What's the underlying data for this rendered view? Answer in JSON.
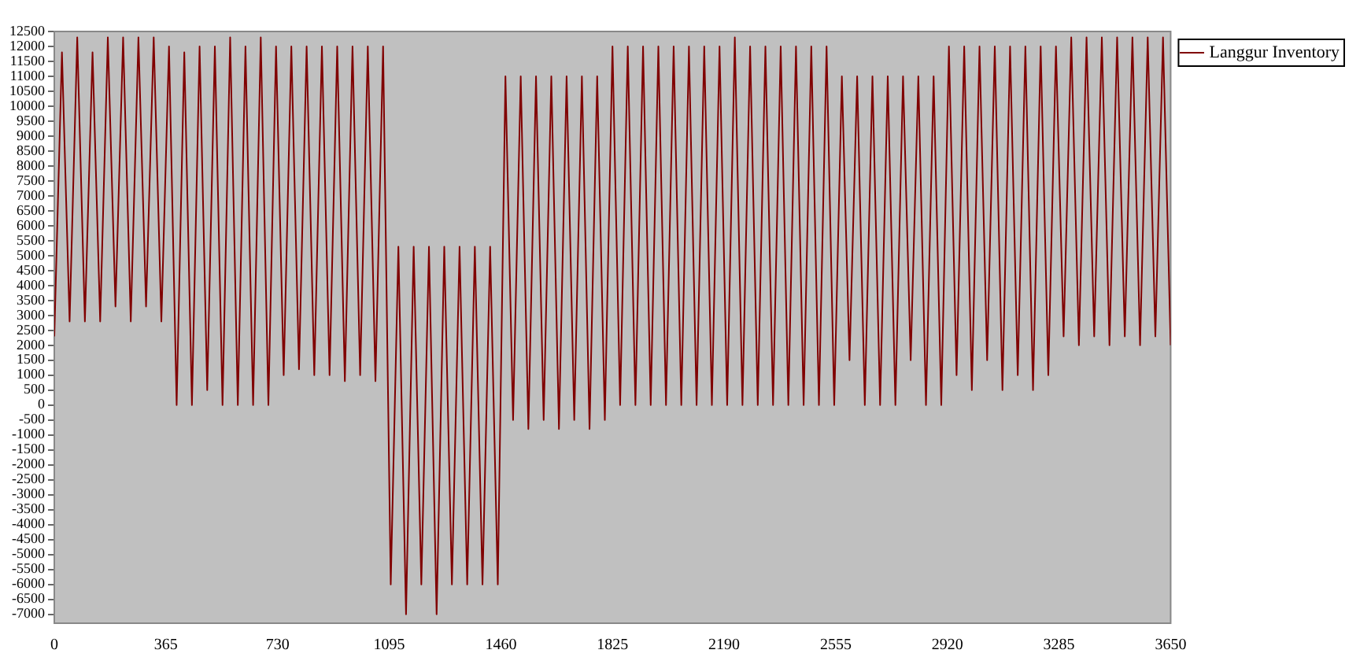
{
  "chart_data": {
    "type": "line",
    "legend": "top right",
    "marker": "none",
    "grid": false,
    "x": [
      0,
      25,
      50,
      75,
      100,
      125,
      150,
      175,
      200,
      225,
      250,
      275,
      300,
      325,
      350,
      375,
      400,
      425,
      450,
      475,
      500,
      525,
      550,
      575,
      600,
      625,
      650,
      675,
      700,
      725,
      750,
      775,
      800,
      825,
      850,
      875,
      900,
      925,
      950,
      975,
      1000,
      1025,
      1050,
      1075,
      1100,
      1125,
      1150,
      1175,
      1200,
      1225,
      1250,
      1275,
      1300,
      1325,
      1350,
      1375,
      1400,
      1425,
      1450,
      1475,
      1500,
      1525,
      1550,
      1575,
      1600,
      1625,
      1650,
      1675,
      1700,
      1725,
      1750,
      1775,
      1800,
      1825,
      1850,
      1875,
      1900,
      1925,
      1950,
      1975,
      2000,
      2025,
      2050,
      2075,
      2100,
      2125,
      2150,
      2175,
      2200,
      2225,
      2250,
      2275,
      2300,
      2325,
      2350,
      2375,
      2400,
      2425,
      2450,
      2475,
      2500,
      2525,
      2550,
      2575,
      2600,
      2625,
      2650,
      2675,
      2700,
      2725,
      2750,
      2775,
      2800,
      2825,
      2850,
      2875,
      2900,
      2925,
      2950,
      2975,
      3000,
      3025,
      3050,
      3075,
      3100,
      3125,
      3150,
      3175,
      3200,
      3225,
      3250,
      3275,
      3300,
      3325,
      3350,
      3375,
      3400,
      3425,
      3450,
      3475,
      3500,
      3525,
      3550,
      3575,
      3600,
      3625,
      3650
    ],
    "series": [
      {
        "name": "Langgur Inventory",
        "color": "#800000",
        "values": [
          2300,
          11800,
          2800,
          12300,
          2800,
          11800,
          2800,
          12300,
          3300,
          12300,
          2800,
          12300,
          3300,
          12300,
          2800,
          12000,
          0,
          11800,
          0,
          12000,
          500,
          12000,
          0,
          12300,
          0,
          12000,
          0,
          12300,
          0,
          12000,
          1000,
          12000,
          1200,
          12000,
          1000,
          12000,
          1000,
          12000,
          800,
          12000,
          1000,
          12000,
          800,
          12000,
          -6000,
          5300,
          -7000,
          5300,
          -6000,
          5300,
          -7000,
          5300,
          -6000,
          5300,
          -6000,
          5300,
          -6000,
          5300,
          -6000,
          11000,
          -500,
          11000,
          -800,
          11000,
          -500,
          11000,
          -800,
          11000,
          -500,
          11000,
          -800,
          11000,
          -500,
          12000,
          0,
          12000,
          0,
          12000,
          0,
          12000,
          0,
          12000,
          0,
          12000,
          0,
          12000,
          0,
          12000,
          0,
          12300,
          0,
          12000,
          0,
          12000,
          0,
          12000,
          0,
          12000,
          0,
          12000,
          0,
          12000,
          0,
          11000,
          1500,
          11000,
          0,
          11000,
          0,
          11000,
          0,
          11000,
          1500,
          11000,
          0,
          11000,
          0,
          12000,
          1000,
          12000,
          500,
          12000,
          1500,
          12000,
          500,
          12000,
          1000,
          12000,
          500,
          12000,
          1000,
          12000,
          2300,
          12300,
          2000,
          12300,
          2300,
          12300,
          2000,
          12300,
          2300,
          12300,
          2000,
          12300,
          2300,
          12300,
          2000
        ]
      }
    ],
    "xlim": [
      0,
      3650
    ],
    "xticks": [
      0,
      365,
      730,
      1095,
      1460,
      1825,
      2190,
      2555,
      2920,
      3285,
      3650
    ],
    "ylim": [
      -7300,
      12500
    ],
    "yticks": [
      -7000,
      -6500,
      -6000,
      -5500,
      -5000,
      -4500,
      -4000,
      -3500,
      -3000,
      -2500,
      -2000,
      -1500,
      -1000,
      -500,
      0,
      500,
      1000,
      1500,
      2000,
      2500,
      3000,
      3500,
      4000,
      4500,
      5000,
      5500,
      6000,
      6500,
      7000,
      7500,
      8000,
      8500,
      9000,
      9500,
      10000,
      10500,
      11000,
      11500,
      12000,
      12500
    ]
  }
}
